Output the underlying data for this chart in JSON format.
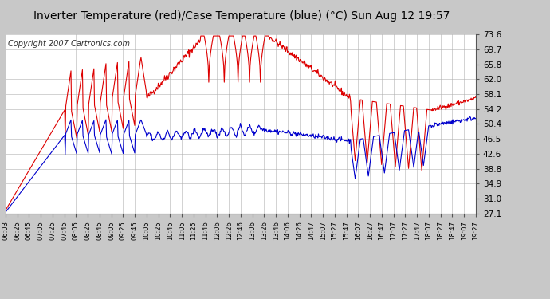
{
  "title": "Inverter Temperature (red)/Case Temperature (blue) (°C) Sun Aug 12 19:57",
  "copyright": "Copyright 2007 Cartronics.com",
  "y_ticks": [
    27.1,
    31.0,
    34.9,
    38.8,
    42.6,
    46.5,
    50.4,
    54.2,
    58.1,
    62.0,
    65.8,
    69.7,
    73.6
  ],
  "ylim": [
    27.1,
    73.6
  ],
  "background_color": "#c8c8c8",
  "plot_bg_color": "#ffffff",
  "grid_color": "#b0b0b0",
  "red_color": "#dd0000",
  "blue_color": "#0000cc",
  "title_fontsize": 10,
  "copyright_fontsize": 7
}
